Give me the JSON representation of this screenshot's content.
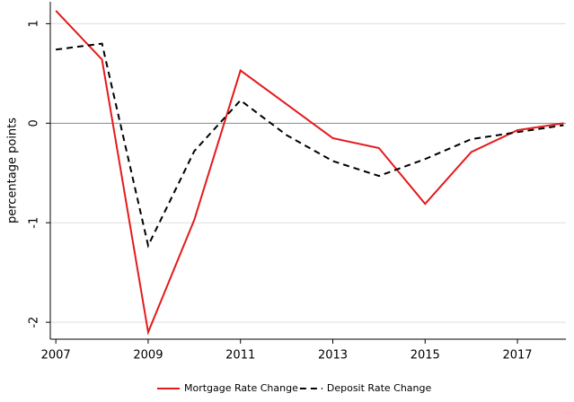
{
  "chart_data": {
    "type": "line",
    "y_label": "percentage points",
    "x": [
      2007,
      2008,
      2009,
      2010,
      2011,
      2012,
      2013,
      2014,
      2015,
      2016,
      2017,
      2018
    ],
    "series": [
      {
        "name": "Mortgage Rate Change",
        "color": "#e41a1c",
        "style": "solid",
        "values": [
          1.13,
          0.64,
          -2.1,
          -0.97,
          0.53,
          0.19,
          -0.15,
          -0.25,
          -0.81,
          -0.29,
          -0.07,
          0.0
        ]
      },
      {
        "name": "Deposit Rate Change",
        "color": "#000000",
        "style": "dashed",
        "values": [
          0.74,
          0.8,
          -1.23,
          -0.28,
          0.23,
          -0.12,
          -0.38,
          -0.53,
          -0.36,
          -0.16,
          -0.09,
          -0.02
        ]
      }
    ],
    "xlim": [
      2006.88,
      2018.05
    ],
    "xticks": [
      2007,
      2009,
      2011,
      2013,
      2015,
      2017
    ],
    "ylim": [
      -2.17,
      1.22
    ],
    "yticks": [
      -2,
      -1,
      0,
      1
    ],
    "grid": true,
    "zero_line": true,
    "legend": "bottom"
  }
}
